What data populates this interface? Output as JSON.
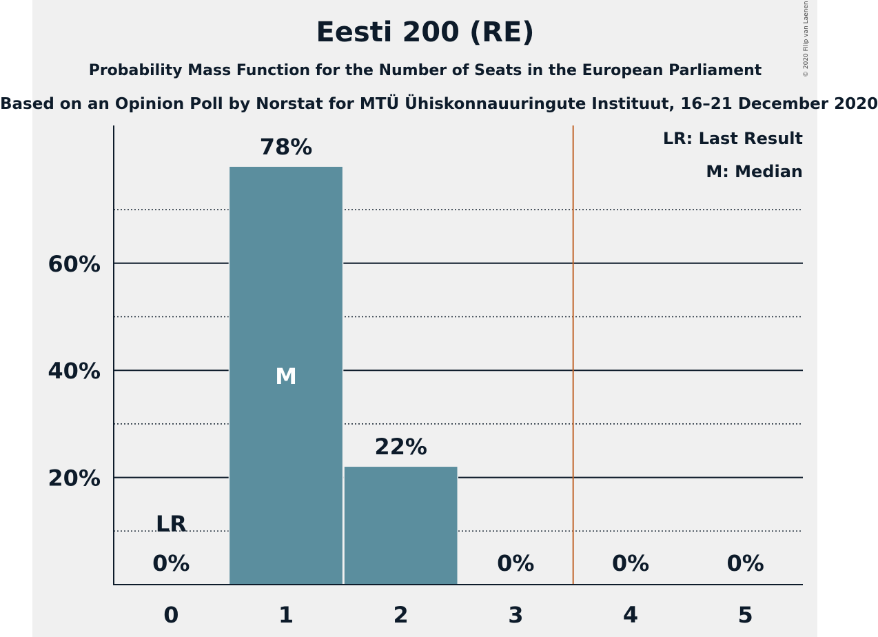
{
  "title": "Eesti 200 (RE)",
  "subtitle": "Probability Mass Function for the Number of Seats in the European Parliament",
  "subtitle2": "Based on an Opinion Poll by Norstat for MTÜ Ühiskonnauuringute Instituut, 16–21 December 2020",
  "copyright": "© 2020 Filip van Laenen",
  "legend": {
    "lr": "LR: Last Result",
    "median": "M: Median"
  },
  "colors": {
    "bar": "#5b8e9e",
    "threshold": "#c0652a",
    "text": "#0d1b2a",
    "background": "#f0f0f0"
  },
  "chart_data": {
    "type": "bar",
    "categories": [
      "0",
      "1",
      "2",
      "3",
      "4",
      "5"
    ],
    "values": [
      0,
      78,
      22,
      0,
      0,
      0
    ],
    "value_labels": [
      "0%",
      "78%",
      "22%",
      "0%",
      "0%",
      "0%"
    ],
    "ylim": [
      0,
      85
    ],
    "yticks": [
      20,
      40,
      60
    ],
    "ytick_labels": [
      "20%",
      "40%",
      "60%"
    ],
    "minor_gridlines": [
      10,
      30,
      50,
      70
    ],
    "last_result": {
      "category": "0",
      "label": "LR"
    },
    "median": {
      "category": "1",
      "label": "M"
    },
    "majority_threshold_between": [
      "3",
      "4"
    ],
    "legend_position": "top-right",
    "xlabel": "",
    "ylabel": ""
  }
}
